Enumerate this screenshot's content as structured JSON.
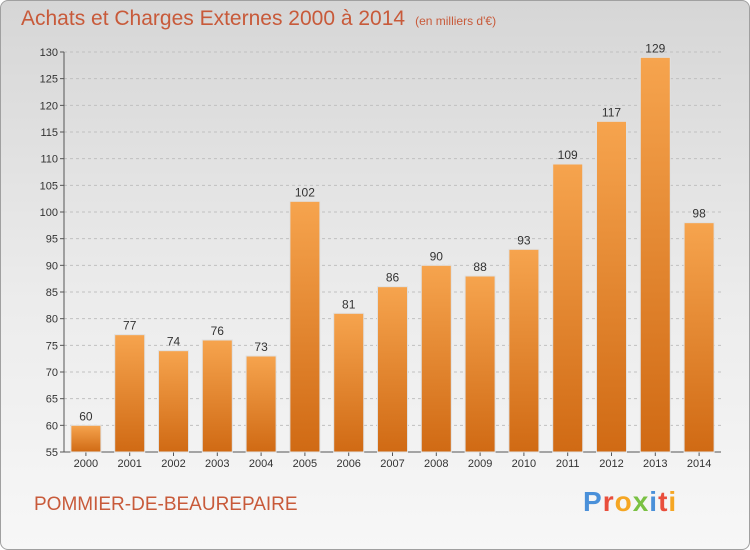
{
  "title": "Achats et Charges Externes 2000 à 2014",
  "unit_label": "(en milliers d'€)",
  "commune": "POMMIER-DE-BEAUREPAIRE",
  "logo": {
    "text": "Proxiti",
    "letters": [
      {
        "char": "P",
        "color": "#4a90d9"
      },
      {
        "char": "r",
        "color": "#e94e3c"
      },
      {
        "char": "o",
        "color": "#f5a623"
      },
      {
        "char": "x",
        "color": "#7ac143"
      },
      {
        "char": "i",
        "color": "#4a90d9"
      },
      {
        "char": "t",
        "color": "#e94e3c"
      },
      {
        "char": "i",
        "color": "#f5a623"
      }
    ]
  },
  "colors": {
    "title": "#c85a3a",
    "bar_top": "#f6a44e",
    "bar_bottom": "#d06a14",
    "grid": "#c0c0c0"
  },
  "chart_data": {
    "type": "bar",
    "title": "Achats et Charges Externes 2000 à 2014",
    "xlabel": "",
    "ylabel": "",
    "categories": [
      "2000",
      "2001",
      "2002",
      "2003",
      "2004",
      "2005",
      "2006",
      "2007",
      "2008",
      "2009",
      "2010",
      "2011",
      "2012",
      "2013",
      "2014"
    ],
    "values": [
      60,
      77,
      74,
      76,
      73,
      102,
      81,
      86,
      90,
      88,
      93,
      109,
      117,
      129,
      98
    ],
    "ylim": [
      55,
      130
    ],
    "yticks": [
      55,
      60,
      65,
      70,
      75,
      80,
      85,
      90,
      95,
      100,
      105,
      110,
      115,
      120,
      125,
      130
    ],
    "grid": "horizontal dashed"
  }
}
